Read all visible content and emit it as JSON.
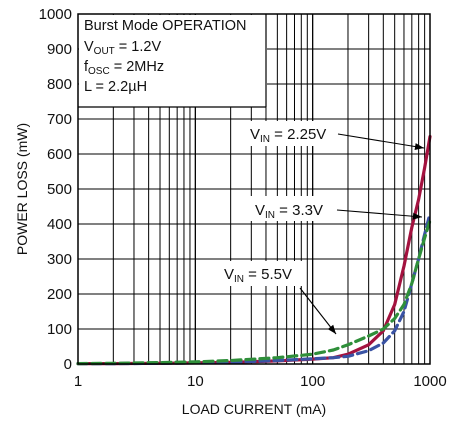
{
  "chart_data": {
    "type": "line",
    "xlabel": "LOAD CURRENT (mA)",
    "ylabel": "POWER LOSS (mW)",
    "xscale": "log",
    "xlim": [
      1,
      1000
    ],
    "ylim": [
      0,
      1000
    ],
    "x_ticks": [
      "1",
      "10",
      "100",
      "1000"
    ],
    "y_ticks": [
      "0",
      "100",
      "200",
      "300",
      "400",
      "500",
      "600",
      "700",
      "800",
      "900",
      "1000"
    ],
    "grid": true,
    "info_box": {
      "title": "Burst Mode OPERATION",
      "lines": [
        {
          "main": "V",
          "sub": "OUT",
          "rest": " = 1.2V"
        },
        {
          "main": "f",
          "sub": "OSC",
          "rest": " = 2MHz"
        },
        {
          "main": "L = 2.2µH",
          "sub": "",
          "rest": ""
        }
      ]
    },
    "series": [
      {
        "label_main": "V",
        "label_sub": "IN",
        "label_rest": " = 2.25V",
        "color": "#a3123f",
        "dash": "solid",
        "x": [
          1,
          2,
          5,
          10,
          20,
          50,
          100,
          150,
          200,
          300,
          400,
          500,
          600,
          700,
          800,
          900,
          1000
        ],
        "y": [
          1,
          1,
          2,
          3,
          5,
          9,
          14,
          18,
          28,
          55,
          95,
          170,
          280,
          390,
          470,
          560,
          650
        ]
      },
      {
        "label_main": "V",
        "label_sub": "IN",
        "label_rest": " = 3.3V",
        "color": "#3a53a4",
        "dash": "dashed",
        "x": [
          1,
          2,
          5,
          10,
          20,
          50,
          100,
          150,
          200,
          300,
          400,
          500,
          600,
          700,
          800,
          900,
          1000
        ],
        "y": [
          1,
          1,
          2,
          3,
          5,
          10,
          15,
          18,
          22,
          38,
          60,
          95,
          150,
          230,
          300,
          370,
          430
        ]
      },
      {
        "label_main": "V",
        "label_sub": "IN",
        "label_rest": " = 5.5V",
        "color": "#2f8f3a",
        "dash": "dashed",
        "x": [
          1,
          2,
          5,
          10,
          20,
          50,
          100,
          150,
          200,
          300,
          400,
          500,
          600,
          700,
          800,
          900,
          1000
        ],
        "y": [
          1,
          2,
          4,
          6,
          10,
          18,
          28,
          40,
          55,
          80,
          100,
          130,
          170,
          230,
          300,
          360,
          410
        ]
      }
    ]
  }
}
